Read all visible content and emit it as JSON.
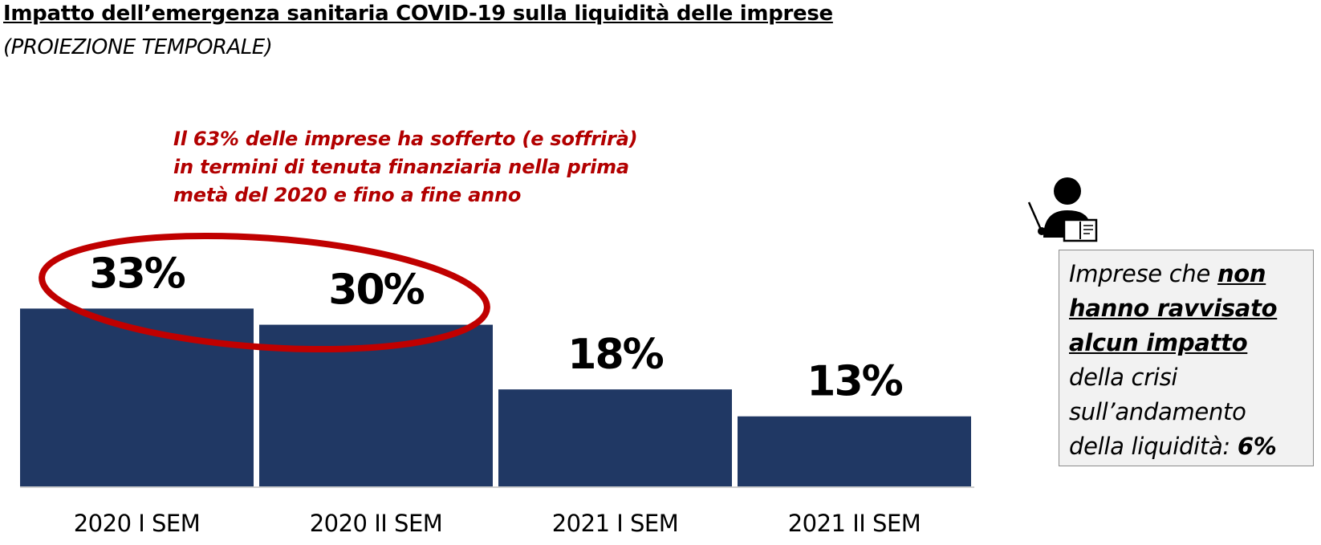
{
  "title": "Impatto dell’emergenza sanitaria COVID-19 sulla liquidità delle imprese",
  "subtitle": "(PROIEZIONE TEMPORALE)",
  "annotation": {
    "lines": [
      "Il 63% delle imprese ha sofferto (e soffrirà)",
      "in termini di tenuta finanziaria nella prima",
      "metà del 2020 e fino a fine anno"
    ],
    "color": "#b20000"
  },
  "side_box": {
    "text_pre": "Imprese che ",
    "highlight_parts": [
      "non",
      "hanno ravvisato",
      "alcun impatto"
    ],
    "text_post_lines": [
      "della crisi",
      "sull’andamento",
      "della liquidità:"
    ],
    "value": "6%",
    "icon": "teacher-presentation-icon"
  },
  "chart_data": {
    "type": "bar",
    "categories": [
      "2020 I SEM",
      "2020 II SEM",
      "2021 I SEM",
      "2021 II SEM"
    ],
    "values": [
      33,
      30,
      18,
      13
    ],
    "data_labels": [
      "33%",
      "30%",
      "18%",
      "13%"
    ],
    "bar_color": "#203864",
    "ylim": [
      0,
      35
    ],
    "title": "",
    "xlabel": "",
    "ylabel": "",
    "grid": false,
    "highlight": {
      "categories": [
        "2020 I SEM",
        "2020 II SEM"
      ],
      "shape": "ellipse",
      "color": "#c00000"
    }
  }
}
